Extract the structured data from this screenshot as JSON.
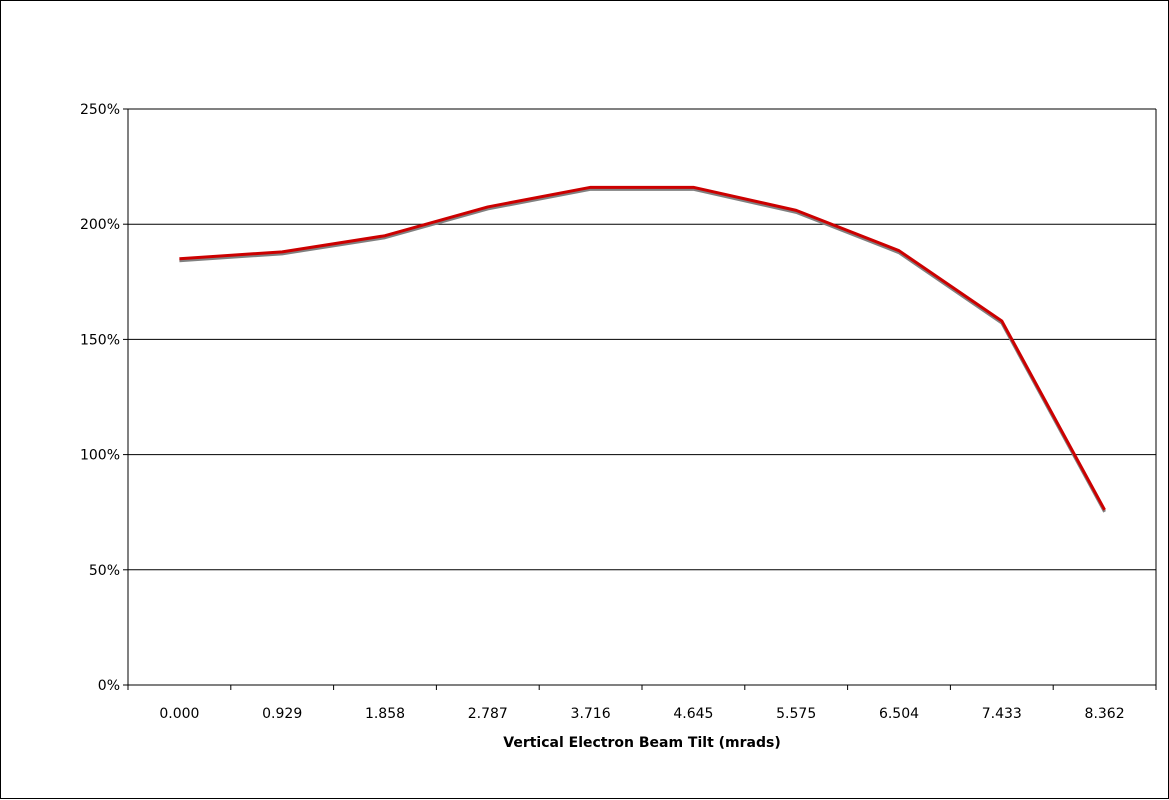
{
  "chart_data": {
    "type": "line",
    "title": "",
    "xlabel": "Vertical Electron Beam Tilt (mrads)",
    "ylabel": "",
    "categories": [
      "0.000",
      "0.929",
      "1.858",
      "2.787",
      "3.716",
      "4.645",
      "5.575",
      "6.504",
      "7.433",
      "8.362"
    ],
    "y_ticks": [
      "0%",
      "50%",
      "100%",
      "150%",
      "200%",
      "250%"
    ],
    "ylim": [
      0,
      250
    ],
    "grid": "horizontal",
    "legend": "none",
    "series": [
      {
        "values": [
          185,
          188,
          195,
          207.5,
          216,
          216,
          206,
          188.5,
          158,
          76
        ],
        "color": "#cc0000",
        "shadow_color": "#808080"
      }
    ]
  }
}
